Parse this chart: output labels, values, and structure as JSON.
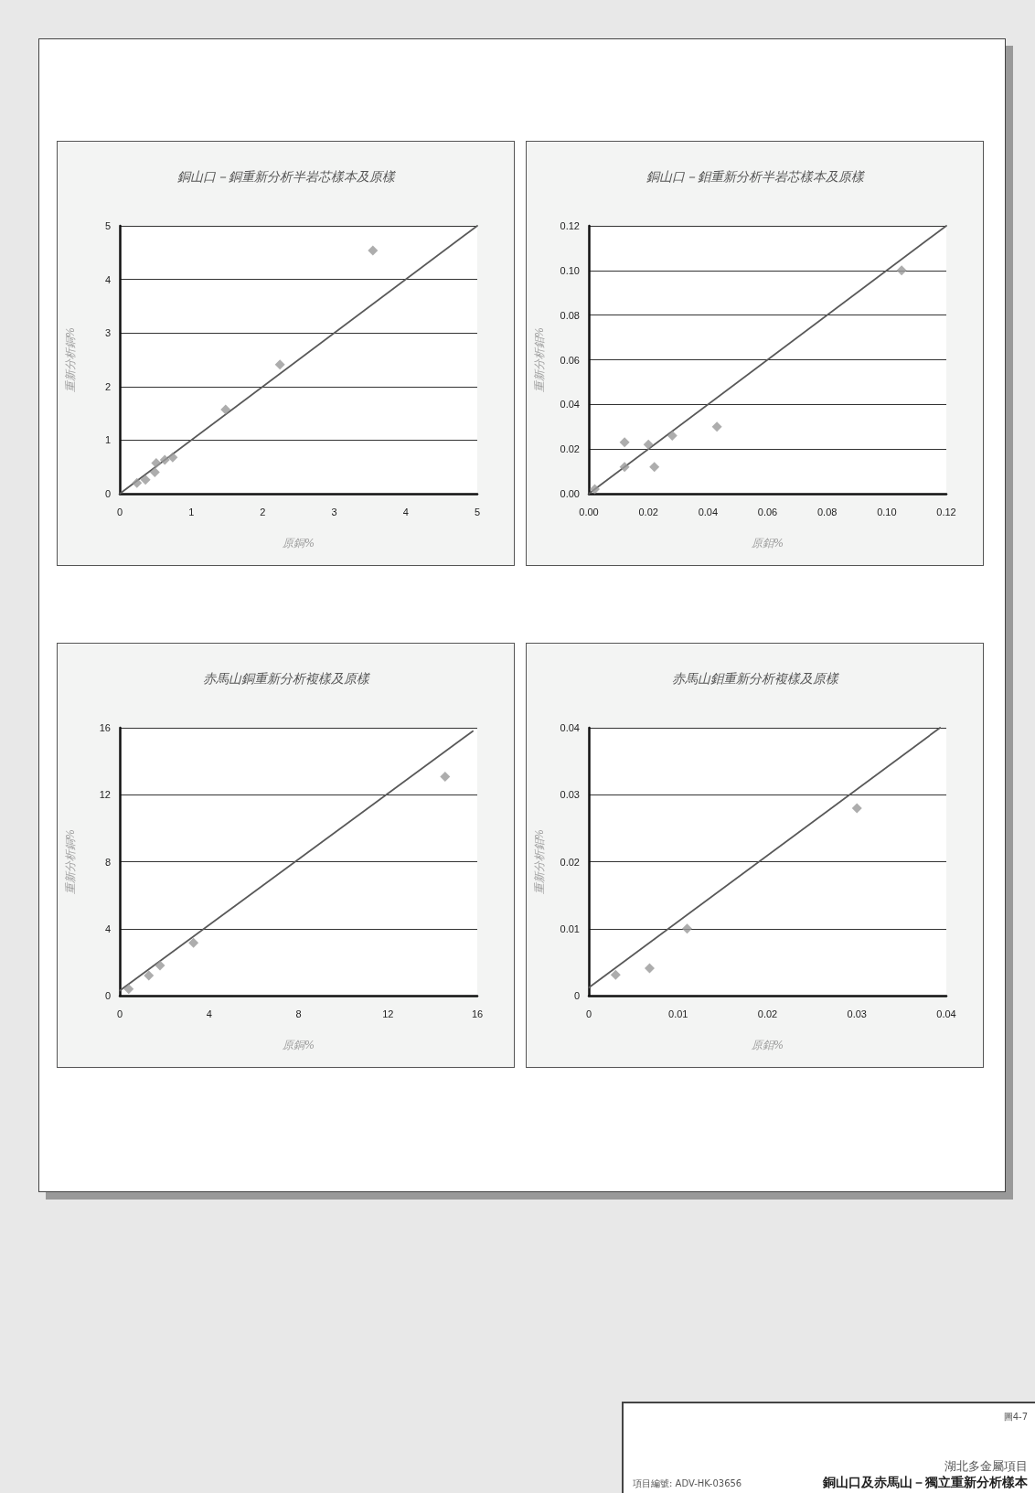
{
  "chart_data": [
    {
      "type": "scatter",
      "title": "銅山口－銅重新分析半岩芯樣本及原樣",
      "xlabel": "原銅%",
      "ylabel": "重新分析銅%",
      "xlim": [
        0,
        5
      ],
      "ylim": [
        0,
        5
      ],
      "xticks": [
        0,
        1,
        2,
        3,
        4,
        5
      ],
      "yticks": [
        0,
        1,
        2,
        3,
        4,
        5
      ],
      "grid": "y",
      "marker": "diamond",
      "series": [
        {
          "type": "scatter",
          "color": "#999999",
          "x": [
            0.24,
            0.36,
            0.49,
            0.51,
            0.63,
            0.74,
            1.48,
            2.24,
            3.54
          ],
          "values": [
            0.2,
            0.26,
            0.4,
            0.57,
            0.63,
            0.68,
            1.57,
            2.41,
            4.54
          ]
        },
        {
          "type": "line",
          "color": "#595959",
          "marker": "none",
          "x": [
            0,
            5
          ],
          "values": [
            0,
            5
          ]
        }
      ]
    },
    {
      "type": "scatter",
      "title": "銅山口－鉬重新分析半岩芯樣本及原樣",
      "xlabel": "原鉬%",
      "ylabel": "重新分析鉬%",
      "xlim": [
        0,
        0.12
      ],
      "ylim": [
        0,
        0.12
      ],
      "xticks": [
        {
          "value": 0,
          "label": "0.00"
        },
        0.02,
        0.04,
        0.06,
        0.08,
        {
          "value": 0.1,
          "label": "0.10"
        },
        0.12
      ],
      "yticks": [
        {
          "value": 0,
          "label": "0.00"
        },
        0.02,
        0.04,
        0.06,
        0.08,
        {
          "value": 0.1,
          "label": "0.10"
        },
        0.12
      ],
      "grid": "y",
      "marker": "diamond",
      "series": [
        {
          "type": "scatter",
          "color": "#999999",
          "x": [
            0.002,
            0.012,
            0.012,
            0.02,
            0.022,
            0.028,
            0.043,
            0.105
          ],
          "values": [
            0.002,
            0.023,
            0.012,
            0.022,
            0.012,
            0.026,
            0.03,
            0.1
          ]
        },
        {
          "type": "line",
          "color": "#595959",
          "marker": "none",
          "x": [
            0,
            0.12
          ],
          "values": [
            0,
            0.12
          ]
        }
      ]
    },
    {
      "type": "scatter",
      "title": "赤馬山銅重新分析複樣及原樣",
      "xlabel": "原銅%",
      "ylabel": "重新分析銅%",
      "xlim": [
        0,
        16
      ],
      "ylim": [
        0,
        16
      ],
      "xticks": [
        0,
        4,
        8,
        12,
        16
      ],
      "yticks": [
        0,
        4,
        8,
        12,
        16
      ],
      "grid": "y",
      "marker": "diamond",
      "series": [
        {
          "type": "scatter",
          "color": "#999999",
          "x": [
            0.4,
            1.3,
            1.8,
            3.3,
            14.56
          ],
          "values": [
            0.4,
            1.2,
            1.8,
            3.15,
            13.08
          ]
        },
        {
          "type": "line",
          "color": "#595959",
          "marker": "none",
          "x": [
            0,
            15.8
          ],
          "values": [
            0.3,
            15.8
          ]
        }
      ]
    },
    {
      "type": "scatter",
      "title": "赤馬山鉬重新分析複樣及原樣",
      "xlabel": "原鉬%",
      "ylabel": "重新分析鉬%",
      "xlim": [
        0,
        0.04
      ],
      "ylim": [
        0,
        0.04
      ],
      "xticks": [
        0,
        0.01,
        0.02,
        0.03,
        0.04
      ],
      "yticks": [
        0,
        0.01,
        0.02,
        0.03,
        0.04
      ],
      "grid": "y",
      "marker": "diamond",
      "series": [
        {
          "type": "scatter",
          "color": "#999999",
          "x": [
            0.003,
            0.0068,
            0.011,
            0.03
          ],
          "values": [
            0.0031,
            0.0041,
            0.01,
            0.028
          ]
        },
        {
          "type": "line",
          "color": "#595959",
          "marker": "none",
          "x": [
            0,
            0.0393
          ],
          "values": [
            0.0012,
            0.04
          ]
        }
      ]
    },
    {
      "type": "other",
      "title": "銅山口及赤馬山－獨立重新分析樣本",
      "annotations": [
        "圖4-7",
        "湖北多金屬項目",
        "項目編號: ADV-HK-03656"
      ]
    }
  ]
}
